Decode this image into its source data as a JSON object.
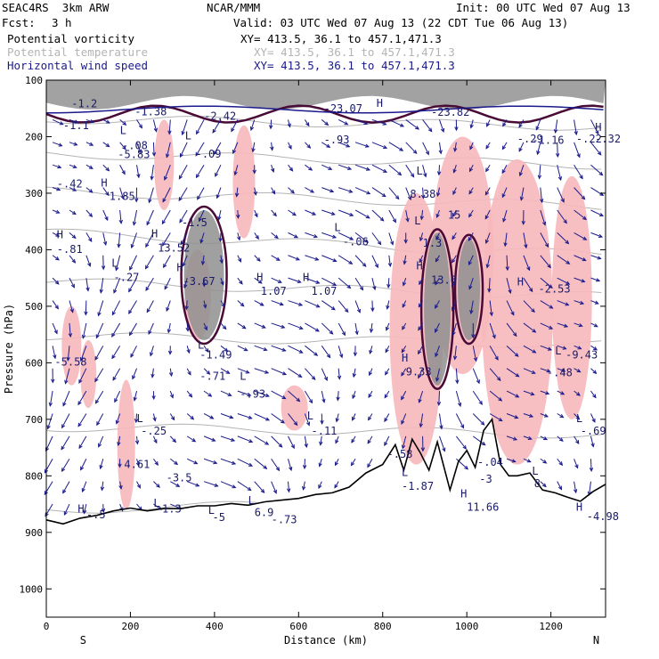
{
  "header": {
    "model": "SEAC4RS  3km ARW",
    "org": "NCAR/MMM",
    "init": "Init: 00 UTC Wed 07 Aug 13",
    "fcst_label": "Fcst:",
    "fcst_value": "3 h",
    "valid": "Valid: 03 UTC Wed 07 Aug 13 (22 CDT Tue 06 Aug 13)",
    "fields": [
      {
        "name": "Potential vorticity",
        "xy": "XY= 413.5, 36.1 to 457.1,471.3",
        "color": "#000000"
      },
      {
        "name": "Potential temperature",
        "xy": "XY= 413.5, 36.1 to 457.1,471.3",
        "color": "#b4b4b4"
      },
      {
        "name": "Horizontal wind speed",
        "xy": "XY= 413.5, 36.1 to 457.1,471.3",
        "color": "#1a1a8c"
      }
    ]
  },
  "chart_data": {
    "type": "cross-section",
    "xlabel": "Distance (km)",
    "ylabel": "Pressure (hPa)",
    "xlim": [
      0,
      1330
    ],
    "ylim": [
      1050,
      100
    ],
    "x_ticks": [
      0,
      200,
      400,
      600,
      800,
      1000,
      1200
    ],
    "y_ticks": [
      100,
      200,
      300,
      400,
      500,
      600,
      700,
      800,
      900,
      1000
    ],
    "end_labels": {
      "left": "S",
      "right": "N"
    },
    "grid": false,
    "colors": {
      "pv_positive": "#f7b8bc",
      "pv_strong": "#8f8f8f",
      "pv_contour": "#4a0a36",
      "theta_contour": "#b4b4b4",
      "wind_vector": "#1a1a8c",
      "terrain": "#000000"
    },
    "terrain": [
      {
        "x": 0,
        "p": 878
      },
      {
        "x": 40,
        "p": 885
      },
      {
        "x": 80,
        "p": 875
      },
      {
        "x": 120,
        "p": 870
      },
      {
        "x": 160,
        "p": 862
      },
      {
        "x": 200,
        "p": 857
      },
      {
        "x": 240,
        "p": 862
      },
      {
        "x": 280,
        "p": 858
      },
      {
        "x": 320,
        "p": 858
      },
      {
        "x": 360,
        "p": 853
      },
      {
        "x": 400,
        "p": 853
      },
      {
        "x": 440,
        "p": 849
      },
      {
        "x": 480,
        "p": 852
      },
      {
        "x": 520,
        "p": 846
      },
      {
        "x": 560,
        "p": 843
      },
      {
        "x": 600,
        "p": 840
      },
      {
        "x": 640,
        "p": 833
      },
      {
        "x": 680,
        "p": 830
      },
      {
        "x": 720,
        "p": 820
      },
      {
        "x": 760,
        "p": 795
      },
      {
        "x": 800,
        "p": 780
      },
      {
        "x": 830,
        "p": 745
      },
      {
        "x": 850,
        "p": 790
      },
      {
        "x": 870,
        "p": 735
      },
      {
        "x": 890,
        "p": 760
      },
      {
        "x": 910,
        "p": 790
      },
      {
        "x": 930,
        "p": 740
      },
      {
        "x": 960,
        "p": 825
      },
      {
        "x": 980,
        "p": 775
      },
      {
        "x": 1000,
        "p": 755
      },
      {
        "x": 1020,
        "p": 785
      },
      {
        "x": 1040,
        "p": 720
      },
      {
        "x": 1060,
        "p": 700
      },
      {
        "x": 1080,
        "p": 780
      },
      {
        "x": 1100,
        "p": 800
      },
      {
        "x": 1120,
        "p": 800
      },
      {
        "x": 1150,
        "p": 795
      },
      {
        "x": 1180,
        "p": 825
      },
      {
        "x": 1210,
        "p": 830
      },
      {
        "x": 1240,
        "p": 838
      },
      {
        "x": 1270,
        "p": 845
      },
      {
        "x": 1300,
        "p": 828
      },
      {
        "x": 1330,
        "p": 815
      }
    ],
    "theta_levels": [
      {
        "p0": 850,
        "slope": -0.015
      },
      {
        "p0": 720,
        "slope": 0.01
      },
      {
        "p0": 560,
        "slope": 0.012
      },
      {
        "p0": 470,
        "slope": 0.02
      },
      {
        "p0": 390,
        "slope": 0.03
      },
      {
        "p0": 310,
        "slope": 0.02
      },
      {
        "p0": 240,
        "slope": 0.015
      },
      {
        "p0": 175,
        "slope": 0.01
      }
    ],
    "pv_positive_regions": [
      {
        "x": 280,
        "p1": 170,
        "p2": 330,
        "w": 22
      },
      {
        "x": 470,
        "p1": 180,
        "p2": 380,
        "w": 25
      },
      {
        "x": 100,
        "p1": 560,
        "p2": 680,
        "w": 18
      },
      {
        "x": 190,
        "p1": 630,
        "p2": 860,
        "w": 20
      },
      {
        "x": 590,
        "p1": 640,
        "p2": 720,
        "w": 30
      },
      {
        "x": 880,
        "p1": 300,
        "p2": 780,
        "w": 60
      },
      {
        "x": 990,
        "p1": 200,
        "p2": 620,
        "w": 70
      },
      {
        "x": 1120,
        "p1": 240,
        "p2": 780,
        "w": 80
      },
      {
        "x": 1250,
        "p1": 270,
        "p2": 700,
        "w": 45
      },
      {
        "x": 360,
        "p1": 400,
        "p2": 560,
        "w": 30
      },
      {
        "x": 60,
        "p1": 500,
        "p2": 640,
        "w": 22
      }
    ],
    "pv_strong_regions": [
      {
        "x": 375,
        "p1": 330,
        "p2": 560,
        "w": 45
      },
      {
        "x": 930,
        "p1": 370,
        "p2": 640,
        "w": 30
      },
      {
        "x": 1005,
        "p1": 380,
        "p2": 560,
        "w": 25
      }
    ],
    "labels": [
      {
        "t": "L",
        "x": 175,
        "p": 195
      },
      {
        "t": "-.08",
        "x": 180,
        "p": 222
      },
      {
        "t": "-5.83",
        "x": 170,
        "p": 238
      },
      {
        "t": "H",
        "x": 130,
        "p": 288
      },
      {
        "t": "1.85",
        "x": 150,
        "p": 312
      },
      {
        "t": "-.42",
        "x": 25,
        "p": 290
      },
      {
        "t": "L",
        "x": 330,
        "p": 205
      },
      {
        "t": "-.09",
        "x": 355,
        "p": 237
      },
      {
        "t": "-1.5",
        "x": 322,
        "p": 358
      },
      {
        "t": "H",
        "x": 250,
        "p": 378
      },
      {
        "t": "13.52",
        "x": 265,
        "p": 403
      },
      {
        "t": "L",
        "x": 155,
        "p": 430
      },
      {
        "t": "-.27",
        "x": 160,
        "p": 455
      },
      {
        "t": "H",
        "x": 310,
        "p": 438
      },
      {
        "t": "-3.67",
        "x": 325,
        "p": 462
      },
      {
        "t": "H",
        "x": 500,
        "p": 455
      },
      {
        "t": "1.07",
        "x": 510,
        "p": 480
      },
      {
        "t": "H",
        "x": 610,
        "p": 455
      },
      {
        "t": "1.07",
        "x": 630,
        "p": 480
      },
      {
        "t": "L",
        "x": 685,
        "p": 367
      },
      {
        "t": "-.06",
        "x": 705,
        "p": 392
      },
      {
        "t": "H",
        "x": 25,
        "p": 380
      },
      {
        "t": "-.81",
        "x": 25,
        "p": 406
      },
      {
        "t": "-.93",
        "x": 660,
        "p": 212
      },
      {
        "t": "-5.58",
        "x": 20,
        "p": 605
      },
      {
        "t": "L",
        "x": 360,
        "p": 575
      },
      {
        "t": "-1.49",
        "x": 365,
        "p": 592
      },
      {
        "t": "-.71",
        "x": 365,
        "p": 630
      },
      {
        "t": "L",
        "x": 460,
        "p": 630
      },
      {
        "t": "-.93",
        "x": 460,
        "p": 662
      },
      {
        "t": "L",
        "x": 215,
        "p": 705
      },
      {
        "t": "-.25",
        "x": 225,
        "p": 727
      },
      {
        "t": "L",
        "x": 620,
        "p": 700
      },
      {
        "t": "-.11",
        "x": 630,
        "p": 727
      },
      {
        "t": "4.61",
        "x": 185,
        "p": 786
      },
      {
        "t": "L",
        "x": 480,
        "p": 850
      },
      {
        "t": "6.9",
        "x": 495,
        "p": 871
      },
      {
        "t": "-.73",
        "x": 535,
        "p": 884
      },
      {
        "t": "L",
        "x": 385,
        "p": 867
      },
      {
        "t": "-5",
        "x": 395,
        "p": 880
      },
      {
        "t": "H",
        "x": 75,
        "p": 865
      },
      {
        "t": "-.5",
        "x": 95,
        "p": 875
      },
      {
        "t": "L",
        "x": 255,
        "p": 855
      },
      {
        "t": "-1.3",
        "x": 260,
        "p": 865
      },
      {
        "t": "L",
        "x": 880,
        "p": 267
      },
      {
        "t": "8.38",
        "x": 865,
        "p": 308
      },
      {
        "t": "L",
        "x": 875,
        "p": 355
      },
      {
        "t": "15",
        "x": 955,
        "p": 345
      },
      {
        "t": "1.3",
        "x": 895,
        "p": 395
      },
      {
        "t": "H",
        "x": 880,
        "p": 435
      },
      {
        "t": "13.6",
        "x": 915,
        "p": 460
      },
      {
        "t": "H",
        "x": 845,
        "p": 598
      },
      {
        "t": "9.33",
        "x": 855,
        "p": 622
      },
      {
        "t": "H",
        "x": 1120,
        "p": 463
      },
      {
        "t": "-2.53",
        "x": 1170,
        "p": 476
      },
      {
        "t": "L",
        "x": 1210,
        "p": 585
      },
      {
        "t": "-9.43",
        "x": 1235,
        "p": 592
      },
      {
        "t": "-.48",
        "x": 1190,
        "p": 624
      },
      {
        "t": "L",
        "x": 1260,
        "p": 705
      },
      {
        "t": "-.69",
        "x": 1270,
        "p": 727
      },
      {
        "t": "-.58",
        "x": 810,
        "p": 768
      },
      {
        "t": "L",
        "x": 845,
        "p": 800
      },
      {
        "t": "-1.87",
        "x": 845,
        "p": 825
      },
      {
        "t": "-.04",
        "x": 1025,
        "p": 782
      },
      {
        "t": "H",
        "x": 985,
        "p": 838
      },
      {
        "t": "11.66",
        "x": 1000,
        "p": 862
      },
      {
        "t": "-3",
        "x": 1030,
        "p": 812
      },
      {
        "t": "L",
        "x": 1155,
        "p": 798
      },
      {
        "t": "8",
        "x": 1160,
        "p": 820
      },
      {
        "t": "H",
        "x": 1260,
        "p": 862
      },
      {
        "t": "-4.98",
        "x": 1285,
        "p": 878
      },
      {
        "t": "-1.16",
        "x": 1155,
        "p": 213
      },
      {
        "t": "-.29",
        "x": 1120,
        "p": 210
      },
      {
        "t": "H",
        "x": 1305,
        "p": 190
      },
      {
        "t": "-.32",
        "x": 1305,
        "p": 210
      },
      {
        "t": "-.22",
        "x": 1260,
        "p": 210
      },
      {
        "t": "-23.07",
        "x": 660,
        "p": 157
      },
      {
        "t": "-23.82",
        "x": 915,
        "p": 163
      },
      {
        "t": "H",
        "x": 785,
        "p": 147
      },
      {
        "t": "-1.38",
        "x": 210,
        "p": 162
      },
      {
        "t": "-2.42",
        "x": 375,
        "p": 170
      },
      {
        "t": "-1.2",
        "x": 60,
        "p": 148
      },
      {
        "t": "-1.1",
        "x": 40,
        "p": 187
      },
      {
        "t": "-3.5",
        "x": 285,
        "p": 810
      }
    ]
  }
}
